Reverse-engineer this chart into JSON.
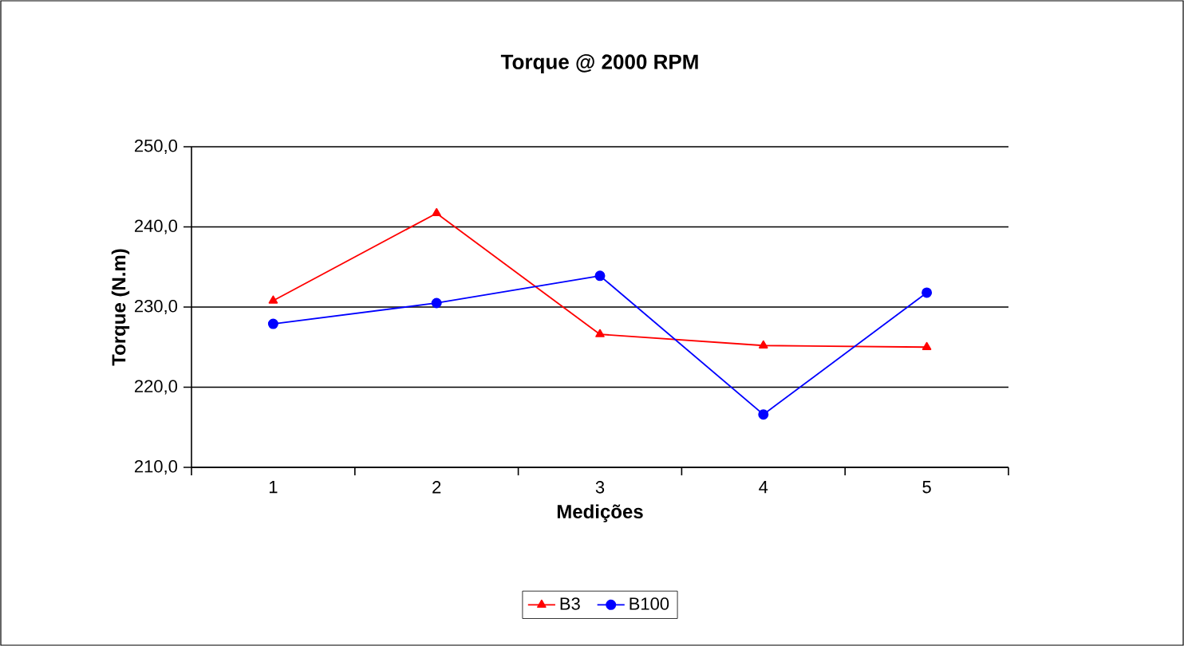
{
  "chart_data": {
    "type": "line",
    "title": "Torque @ 2000 RPM",
    "xlabel": "Medições",
    "ylabel": "Torque (N.m)",
    "categories": [
      "1",
      "2",
      "3",
      "4",
      "5"
    ],
    "series": [
      {
        "name": "B3",
        "color": "#ff0000",
        "marker": "triangle",
        "values": [
          230.8,
          241.7,
          226.6,
          225.2,
          225.0
        ]
      },
      {
        "name": "B100",
        "color": "#0000ff",
        "marker": "circle",
        "values": [
          227.9,
          230.5,
          233.9,
          216.6,
          231.8
        ]
      }
    ],
    "ylim": [
      210,
      250
    ],
    "yticks": [
      {
        "value": 210,
        "label": "210,0"
      },
      {
        "value": 220,
        "label": "220,0"
      },
      {
        "value": 230,
        "label": "230,0"
      },
      {
        "value": 240,
        "label": "240,0"
      },
      {
        "value": 250,
        "label": "250,0"
      }
    ],
    "grid": "y",
    "legend": "bottom",
    "line_style": "solid"
  }
}
